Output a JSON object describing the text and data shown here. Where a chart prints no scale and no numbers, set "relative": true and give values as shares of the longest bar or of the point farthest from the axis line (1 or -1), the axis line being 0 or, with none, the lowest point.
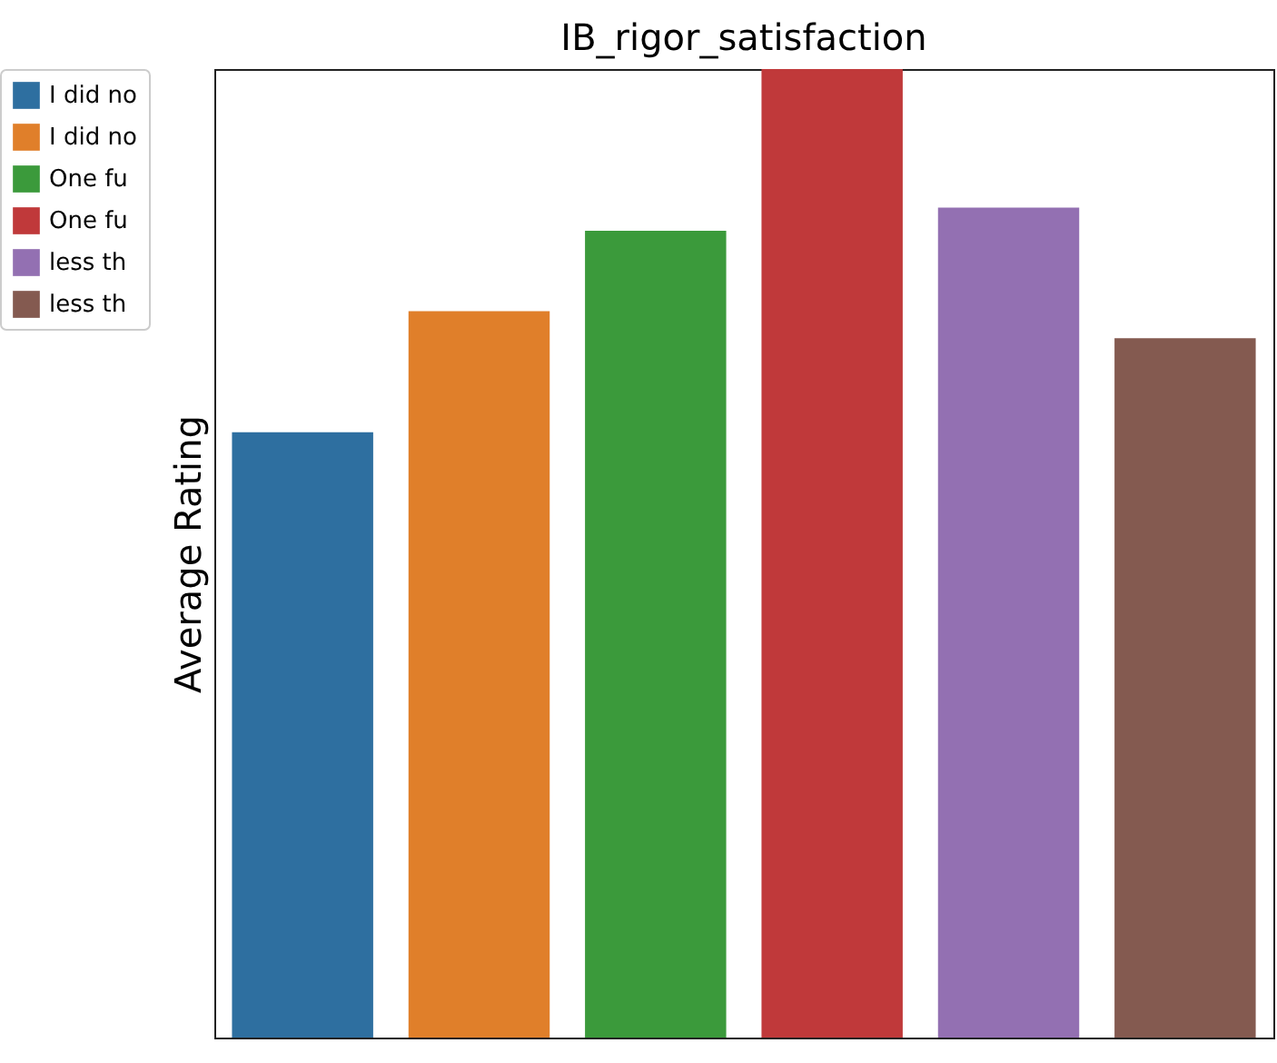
{
  "chart_data": {
    "type": "bar",
    "title": "IB_rigor_satisfaction",
    "ylabel": "Average Rating",
    "relative": true,
    "stacked": true,
    "legend": "top left",
    "categories": [
      null,
      null,
      null,
      null,
      null,
      null
    ],
    "series": [
      {
        "name": "I did no",
        "color": "#2e6fa0",
        "values": [
          0.625,
          null,
          null,
          null,
          null,
          null
        ]
      },
      {
        "name": "I did no",
        "color": "#e07f2a",
        "values": [
          null,
          0.75,
          null,
          null,
          null,
          null
        ]
      },
      {
        "name": "One fu",
        "color": "#3b9a3b",
        "values": [
          null,
          null,
          0.833,
          null,
          null,
          null
        ]
      },
      {
        "name": "One fu",
        "color": "#c0393a",
        "values": [
          null,
          null,
          null,
          1,
          null,
          null
        ]
      },
      {
        "name": "less th",
        "color": "#9370b2",
        "values": [
          null,
          null,
          null,
          null,
          0.857,
          null
        ]
      },
      {
        "name": "less th",
        "color": "#845a50",
        "values": [
          null,
          null,
          null,
          null,
          null,
          0.722
        ]
      }
    ]
  }
}
